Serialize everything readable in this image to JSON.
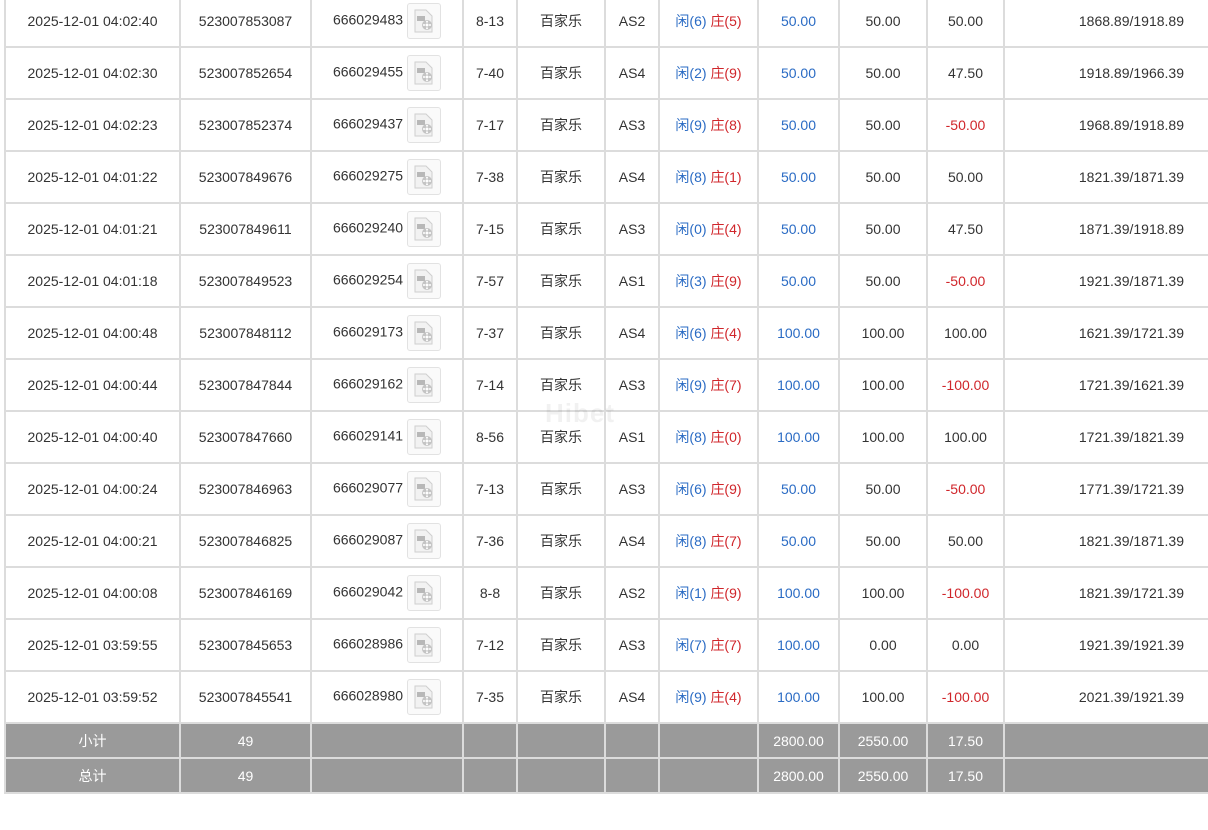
{
  "rows": [
    {
      "time": "2025-12-01 04:02:40",
      "bet_id": "523007853087",
      "round_id": "666029483",
      "shoe": "8-13",
      "game": "百家乐",
      "table": "AS2",
      "player": "闲(6)",
      "banker": "庄(5)",
      "bet": "50.00",
      "valid": "50.00",
      "winloss": "50.00",
      "winloss_neg": false,
      "balance": "1868.89/1918.89"
    },
    {
      "time": "2025-12-01 04:02:30",
      "bet_id": "523007852654",
      "round_id": "666029455",
      "shoe": "7-40",
      "game": "百家乐",
      "table": "AS4",
      "player": "闲(2)",
      "banker": "庄(9)",
      "bet": "50.00",
      "valid": "50.00",
      "winloss": "47.50",
      "winloss_neg": false,
      "balance": "1918.89/1966.39"
    },
    {
      "time": "2025-12-01 04:02:23",
      "bet_id": "523007852374",
      "round_id": "666029437",
      "shoe": "7-17",
      "game": "百家乐",
      "table": "AS3",
      "player": "闲(9)",
      "banker": "庄(8)",
      "bet": "50.00",
      "valid": "50.00",
      "winloss": "-50.00",
      "winloss_neg": true,
      "balance": "1968.89/1918.89"
    },
    {
      "time": "2025-12-01 04:01:22",
      "bet_id": "523007849676",
      "round_id": "666029275",
      "shoe": "7-38",
      "game": "百家乐",
      "table": "AS4",
      "player": "闲(8)",
      "banker": "庄(1)",
      "bet": "50.00",
      "valid": "50.00",
      "winloss": "50.00",
      "winloss_neg": false,
      "balance": "1821.39/1871.39"
    },
    {
      "time": "2025-12-01 04:01:21",
      "bet_id": "523007849611",
      "round_id": "666029240",
      "shoe": "7-15",
      "game": "百家乐",
      "table": "AS3",
      "player": "闲(0)",
      "banker": "庄(4)",
      "bet": "50.00",
      "valid": "50.00",
      "winloss": "47.50",
      "winloss_neg": false,
      "balance": "1871.39/1918.89"
    },
    {
      "time": "2025-12-01 04:01:18",
      "bet_id": "523007849523",
      "round_id": "666029254",
      "shoe": "7-57",
      "game": "百家乐",
      "table": "AS1",
      "player": "闲(3)",
      "banker": "庄(9)",
      "bet": "50.00",
      "valid": "50.00",
      "winloss": "-50.00",
      "winloss_neg": true,
      "balance": "1921.39/1871.39"
    },
    {
      "time": "2025-12-01 04:00:48",
      "bet_id": "523007848112",
      "round_id": "666029173",
      "shoe": "7-37",
      "game": "百家乐",
      "table": "AS4",
      "player": "闲(6)",
      "banker": "庄(4)",
      "bet": "100.00",
      "valid": "100.00",
      "winloss": "100.00",
      "winloss_neg": false,
      "balance": "1621.39/1721.39"
    },
    {
      "time": "2025-12-01 04:00:44",
      "bet_id": "523007847844",
      "round_id": "666029162",
      "shoe": "7-14",
      "game": "百家乐",
      "table": "AS3",
      "player": "闲(9)",
      "banker": "庄(7)",
      "bet": "100.00",
      "valid": "100.00",
      "winloss": "-100.00",
      "winloss_neg": true,
      "balance": "1721.39/1621.39"
    },
    {
      "time": "2025-12-01 04:00:40",
      "bet_id": "523007847660",
      "round_id": "666029141",
      "shoe": "8-56",
      "game": "百家乐",
      "table": "AS1",
      "player": "闲(8)",
      "banker": "庄(0)",
      "bet": "100.00",
      "valid": "100.00",
      "winloss": "100.00",
      "winloss_neg": false,
      "balance": "1721.39/1821.39"
    },
    {
      "time": "2025-12-01 04:00:24",
      "bet_id": "523007846963",
      "round_id": "666029077",
      "shoe": "7-13",
      "game": "百家乐",
      "table": "AS3",
      "player": "闲(6)",
      "banker": "庄(9)",
      "bet": "50.00",
      "valid": "50.00",
      "winloss": "-50.00",
      "winloss_neg": true,
      "balance": "1771.39/1721.39"
    },
    {
      "time": "2025-12-01 04:00:21",
      "bet_id": "523007846825",
      "round_id": "666029087",
      "shoe": "7-36",
      "game": "百家乐",
      "table": "AS4",
      "player": "闲(8)",
      "banker": "庄(7)",
      "bet": "50.00",
      "valid": "50.00",
      "winloss": "50.00",
      "winloss_neg": false,
      "balance": "1821.39/1871.39"
    },
    {
      "time": "2025-12-01 04:00:08",
      "bet_id": "523007846169",
      "round_id": "666029042",
      "shoe": "8-8",
      "game": "百家乐",
      "table": "AS2",
      "player": "闲(1)",
      "banker": "庄(9)",
      "bet": "100.00",
      "valid": "100.00",
      "winloss": "-100.00",
      "winloss_neg": true,
      "balance": "1821.39/1721.39"
    },
    {
      "time": "2025-12-01 03:59:55",
      "bet_id": "523007845653",
      "round_id": "666028986",
      "shoe": "7-12",
      "game": "百家乐",
      "table": "AS3",
      "player": "闲(7)",
      "banker": "庄(7)",
      "bet": "100.00",
      "valid": "0.00",
      "winloss": "0.00",
      "winloss_neg": false,
      "balance": "1921.39/1921.39"
    },
    {
      "time": "2025-12-01 03:59:52",
      "bet_id": "523007845541",
      "round_id": "666028980",
      "shoe": "7-35",
      "game": "百家乐",
      "table": "AS4",
      "player": "闲(9)",
      "banker": "庄(4)",
      "bet": "100.00",
      "valid": "100.00",
      "winloss": "-100.00",
      "winloss_neg": true,
      "balance": "2021.39/1921.39"
    }
  ],
  "subtotal": {
    "label": "小计",
    "count": "49",
    "bet": "2800.00",
    "valid": "2550.00",
    "winloss": "17.50"
  },
  "total": {
    "label": "总计",
    "count": "49",
    "bet": "2800.00",
    "valid": "2550.00",
    "winloss": "17.50"
  },
  "watermark": "Hibet",
  "colors": {
    "player": "#2a6bc4",
    "banker": "#d0262b",
    "negative": "#d0262b",
    "bet": "#2a6bc4",
    "summary_bg": "#9a9a9a"
  },
  "icons": {
    "replay": "video-replay-icon"
  }
}
